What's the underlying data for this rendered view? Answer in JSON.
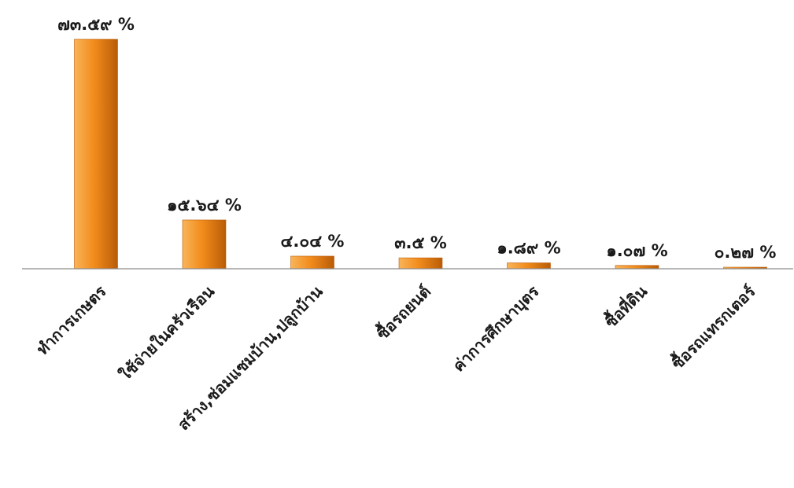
{
  "chart_data": {
    "type": "bar",
    "title": "",
    "xlabel": "",
    "ylabel": "",
    "categories": [
      "ทำการเกษตร",
      "ใช้จ่ายในครัวเรือน",
      "สร้าง,ซ่อมแซมบ้าน,ปลูกบ้าน",
      "ซื้อรถยนต์",
      "ค่าการศึกษาบุตร",
      "ซื้อที่ดิน",
      "ซื้อรถแทรกเตอร์"
    ],
    "values": [
      73.59,
      15.64,
      4.04,
      3.5,
      1.89,
      1.07,
      0.27
    ],
    "data_labels": [
      "๗๓.๕๙ %",
      "๑๕.๖๔ %",
      "๔.๐๔ %",
      "๓.๕ %",
      "๑.๘๙ %",
      "๑.๐๗ %",
      "๐.๒๗ %"
    ],
    "ylim": [
      0,
      73.59
    ],
    "grid": false,
    "legend": "none",
    "colors": {
      "bar_light": "#f9b45a",
      "bar_mid": "#f28c1c",
      "bar_dark": "#b95c07",
      "axis": "#8c8c8c"
    }
  }
}
